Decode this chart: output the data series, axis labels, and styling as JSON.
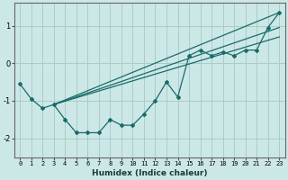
{
  "xlabel": "Humidex (Indice chaleur)",
  "bg_color": "#cce8e6",
  "grid_color": "#aaccca",
  "line_color": "#1a6b6b",
  "xlim": [
    -0.5,
    23.5
  ],
  "ylim": [
    -2.5,
    1.6
  ],
  "yticks": [
    -2,
    -1,
    0,
    1
  ],
  "xticks": [
    0,
    1,
    2,
    3,
    4,
    5,
    6,
    7,
    8,
    9,
    10,
    11,
    12,
    13,
    14,
    15,
    16,
    17,
    18,
    19,
    20,
    21,
    22,
    23
  ],
  "curve1_x": [
    0,
    1,
    2,
    3,
    4,
    5,
    6,
    7,
    8,
    9,
    10,
    11,
    12,
    13,
    14,
    15,
    16,
    17,
    18,
    19,
    20,
    21,
    22,
    23
  ],
  "curve1_y": [
    -0.55,
    -0.95,
    -1.2,
    -1.1,
    -1.5,
    -1.85,
    -1.85,
    -1.85,
    -1.5,
    -1.65,
    -1.65,
    -1.35,
    -1.0,
    -0.5,
    -0.9,
    0.2,
    0.35,
    0.2,
    0.3,
    0.2,
    0.35,
    0.35,
    0.95,
    1.35
  ],
  "line1_x": [
    3,
    23
  ],
  "line1_y": [
    -1.1,
    1.35
  ],
  "line2_x": [
    3,
    23
  ],
  "line2_y": [
    -1.1,
    0.95
  ],
  "line3_x": [
    3,
    23
  ],
  "line3_y": [
    -1.1,
    0.7
  ]
}
